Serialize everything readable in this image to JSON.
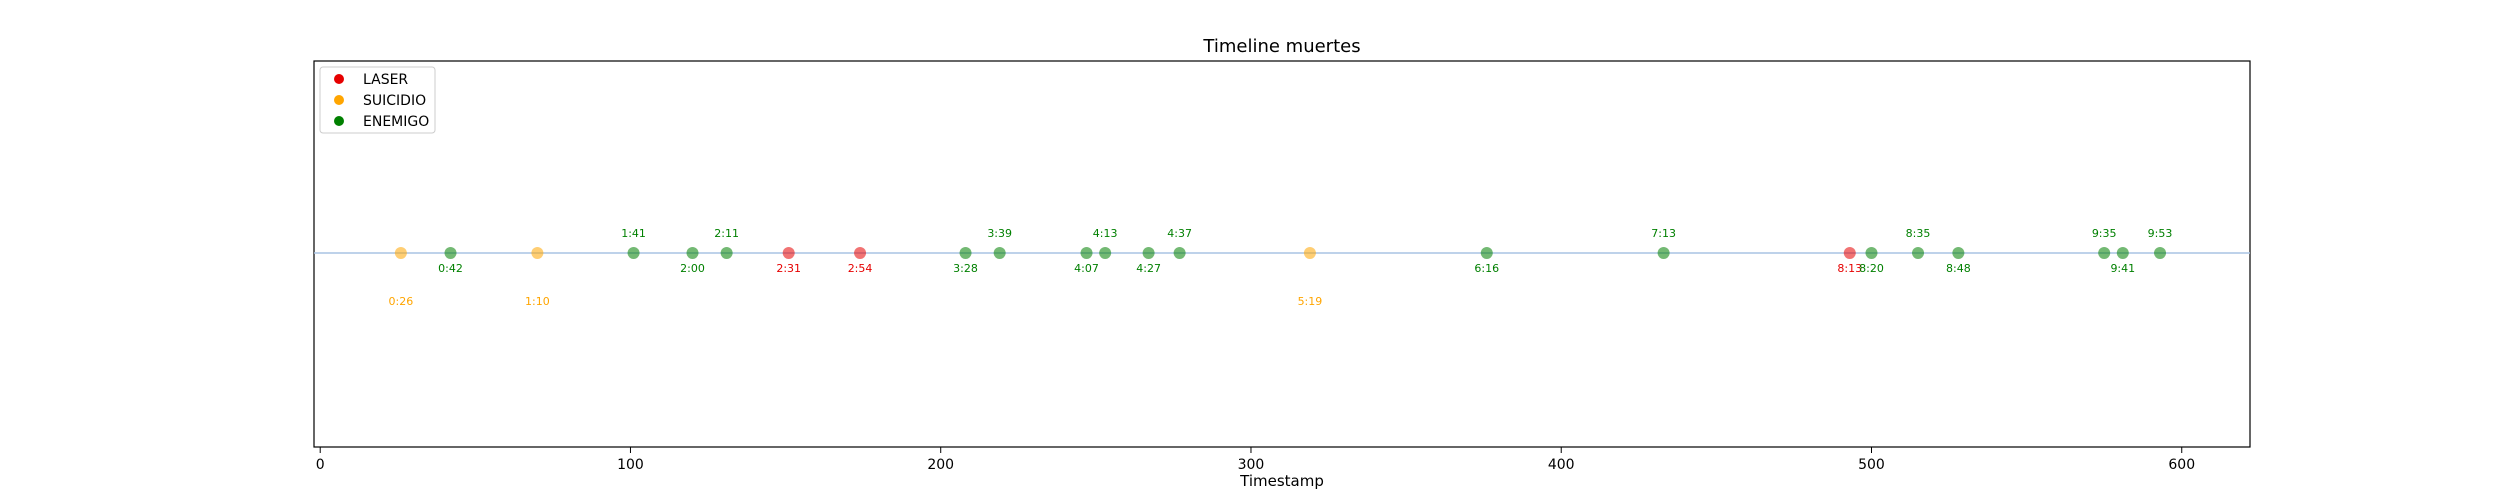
{
  "chart_data": {
    "type": "scatter",
    "title": "Timeline muertes",
    "xlabel": "Timestamp",
    "ylabel": "",
    "xlim": [
      -2,
      622
    ],
    "xticks": [
      0,
      100,
      200,
      300,
      400,
      500,
      600
    ],
    "grid": false,
    "baseline": {
      "color": "#a9c4e3"
    },
    "legend": {
      "placement": "top-left",
      "entries": [
        {
          "name": "LASER",
          "color": "#e60000"
        },
        {
          "name": "SUICIDIO",
          "color": "#ffa500"
        },
        {
          "name": "ENEMIGO",
          "color": "#008000"
        }
      ]
    },
    "series": [
      {
        "name": "LASER",
        "color": "#e60000",
        "points": [
          {
            "x": 151,
            "label": "2:31",
            "label_pos": "below"
          },
          {
            "x": 174,
            "label": "2:54",
            "label_pos": "below"
          },
          {
            "x": 493,
            "label": "8:13",
            "label_pos": "below"
          }
        ]
      },
      {
        "name": "SUICIDIO",
        "color": "#ffa500",
        "points": [
          {
            "x": 26,
            "label": "0:26",
            "label_pos": "far-below"
          },
          {
            "x": 70,
            "label": "1:10",
            "label_pos": "far-below"
          },
          {
            "x": 319,
            "label": "5:19",
            "label_pos": "far-below"
          }
        ]
      },
      {
        "name": "ENEMIGO",
        "color": "#008000",
        "points": [
          {
            "x": 42,
            "label": "0:42",
            "label_pos": "below"
          },
          {
            "x": 101,
            "label": "1:41",
            "label_pos": "above"
          },
          {
            "x": 120,
            "label": "2:00",
            "label_pos": "below"
          },
          {
            "x": 131,
            "label": "2:11",
            "label_pos": "above"
          },
          {
            "x": 208,
            "label": "3:28",
            "label_pos": "below"
          },
          {
            "x": 219,
            "label": "3:39",
            "label_pos": "above"
          },
          {
            "x": 247,
            "label": "4:07",
            "label_pos": "below"
          },
          {
            "x": 253,
            "label": "4:13",
            "label_pos": "above"
          },
          {
            "x": 267,
            "label": "4:27",
            "label_pos": "below"
          },
          {
            "x": 277,
            "label": "4:37",
            "label_pos": "above"
          },
          {
            "x": 376,
            "label": "6:16",
            "label_pos": "below"
          },
          {
            "x": 433,
            "label": "7:13",
            "label_pos": "above"
          },
          {
            "x": 500,
            "label": "8:20",
            "label_pos": "below"
          },
          {
            "x": 515,
            "label": "8:35",
            "label_pos": "above"
          },
          {
            "x": 528,
            "label": "8:48",
            "label_pos": "below"
          },
          {
            "x": 575,
            "label": "9:35",
            "label_pos": "above"
          },
          {
            "x": 581,
            "label": "9:41",
            "label_pos": "below"
          },
          {
            "x": 593,
            "label": "9:53",
            "label_pos": "above"
          }
        ]
      }
    ]
  }
}
